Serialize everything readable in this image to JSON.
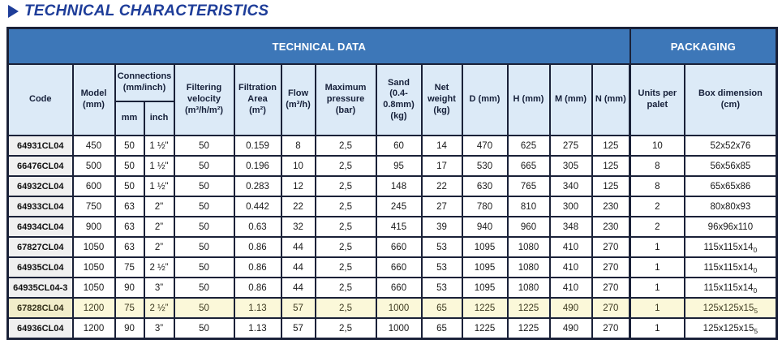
{
  "page": {
    "title": "TECHNICAL CHARACTERISTICS"
  },
  "table": {
    "bands": {
      "technical": "TECHNICAL DATA",
      "packaging": "PACKAGING"
    },
    "columns": {
      "code": "Code",
      "model": "Model\n(mm)",
      "connections": "Connections\n(mm/inch)",
      "mm": "mm",
      "inch": "inch",
      "filtering_velocity": "Filtering\nvelocity\n(m³/h/m²)",
      "filtration_area": "Filtration\nArea\n(m²)",
      "flow": "Flow\n(m³/h)",
      "max_pressure": "Maximum\npressure\n(bar)",
      "sand": "Sand\n(0.4-\n0.8mm)\n(kg)",
      "net_weight": "Net\nweight\n(kg)",
      "d": "D (mm)",
      "h": "H (mm)",
      "m": "M (mm)",
      "n": "N (mm)",
      "units_per_palet": "Units per\npalet",
      "box_dimension": "Box dimension\n(cm)"
    },
    "rows": [
      {
        "code": "64931CL04",
        "model": "450",
        "mm": "50",
        "inch": "1 ½\"",
        "velocity": "50",
        "area": "0.159",
        "flow": "8",
        "pressure": "2,5",
        "sand": "60",
        "net_weight": "14",
        "d": "470",
        "h": "625",
        "m": "275",
        "n": "125",
        "units": "10",
        "box": "52x52x76",
        "box_sub": "",
        "highlight": false
      },
      {
        "code": "66476CL04",
        "model": "500",
        "mm": "50",
        "inch": "1 ½\"",
        "velocity": "50",
        "area": "0.196",
        "flow": "10",
        "pressure": "2,5",
        "sand": "95",
        "net_weight": "17",
        "d": "530",
        "h": "665",
        "m": "305",
        "n": "125",
        "units": "8",
        "box": "56x56x85",
        "box_sub": "",
        "highlight": false
      },
      {
        "code": "64932CL04",
        "model": "600",
        "mm": "50",
        "inch": "1 ½\"",
        "velocity": "50",
        "area": "0.283",
        "flow": "12",
        "pressure": "2,5",
        "sand": "148",
        "net_weight": "22",
        "d": "630",
        "h": "765",
        "m": "340",
        "n": "125",
        "units": "8",
        "box": "65x65x86",
        "box_sub": "",
        "highlight": false
      },
      {
        "code": "64933CL04",
        "model": "750",
        "mm": "63",
        "inch": "2\"",
        "velocity": "50",
        "area": "0.442",
        "flow": "22",
        "pressure": "2,5",
        "sand": "245",
        "net_weight": "27",
        "d": "780",
        "h": "810",
        "m": "300",
        "n": "230",
        "units": "2",
        "box": "80x80x93",
        "box_sub": "",
        "highlight": false
      },
      {
        "code": "64934CL04",
        "model": "900",
        "mm": "63",
        "inch": "2”",
        "velocity": "50",
        "area": "0.63",
        "flow": "32",
        "pressure": "2,5",
        "sand": "415",
        "net_weight": "39",
        "d": "940",
        "h": "960",
        "m": "348",
        "n": "230",
        "units": "2",
        "box": "96x96x110",
        "box_sub": "",
        "highlight": false
      },
      {
        "code": "67827CL04",
        "model": "1050",
        "mm": "63",
        "inch": "2”",
        "velocity": "50",
        "area": "0.86",
        "flow": "44",
        "pressure": "2,5",
        "sand": "660",
        "net_weight": "53",
        "d": "1095",
        "h": "1080",
        "m": "410",
        "n": "270",
        "units": "1",
        "box": "115x115x14",
        "box_sub": "0",
        "highlight": false
      },
      {
        "code": "64935CL04",
        "model": "1050",
        "mm": "75",
        "inch": "2 ½”",
        "velocity": "50",
        "area": "0.86",
        "flow": "44",
        "pressure": "2,5",
        "sand": "660",
        "net_weight": "53",
        "d": "1095",
        "h": "1080",
        "m": "410",
        "n": "270",
        "units": "1",
        "box": "115x115x14",
        "box_sub": "0",
        "highlight": false
      },
      {
        "code": "64935CL04-3",
        "model": "1050",
        "mm": "90",
        "inch": "3”",
        "velocity": "50",
        "area": "0.86",
        "flow": "44",
        "pressure": "2,5",
        "sand": "660",
        "net_weight": "53",
        "d": "1095",
        "h": "1080",
        "m": "410",
        "n": "270",
        "units": "1",
        "box": "115x115x14",
        "box_sub": "0",
        "highlight": false
      },
      {
        "code": "67828CL04",
        "model": "1200",
        "mm": "75",
        "inch": "2 ½”",
        "velocity": "50",
        "area": "1.13",
        "flow": "57",
        "pressure": "2,5",
        "sand": "1000",
        "net_weight": "65",
        "d": "1225",
        "h": "1225",
        "m": "490",
        "n": "270",
        "units": "1",
        "box": "125x125x15",
        "box_sub": "5",
        "highlight": true
      },
      {
        "code": "64936CL04",
        "model": "1200",
        "mm": "90",
        "inch": "3”",
        "velocity": "50",
        "area": "1.13",
        "flow": "57",
        "pressure": "2,5",
        "sand": "1000",
        "net_weight": "65",
        "d": "1225",
        "h": "1225",
        "m": "490",
        "n": "270",
        "units": "1",
        "box": "125x125x15",
        "box_sub": "5",
        "highlight": false
      }
    ],
    "colors": {
      "band_blue": "#3d77b8",
      "subheader_blue": "#dceaf7",
      "border": "#1a2138",
      "title_blue": "#1e3d99",
      "code_cell_gray": "#f0f0f0",
      "highlight_yellow": "#fbf8d9",
      "highlight_code_yellow": "#f1edca"
    }
  }
}
